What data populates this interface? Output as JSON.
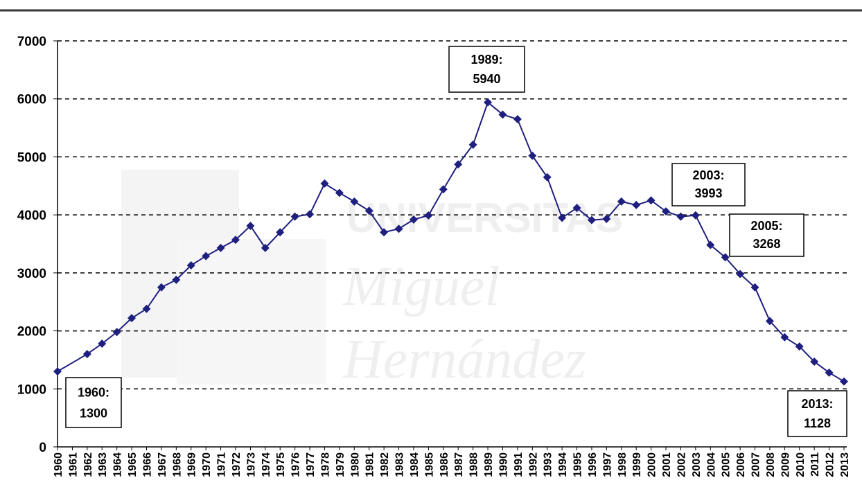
{
  "chart_data": {
    "type": "line",
    "watermark": [
      "UNIVERSITAS",
      "Miguel",
      "Hernández"
    ],
    "x": [
      1960,
      1962,
      1963,
      1964,
      1965,
      1966,
      1967,
      1968,
      1969,
      1970,
      1971,
      1972,
      1973,
      1974,
      1975,
      1976,
      1977,
      1978,
      1979,
      1980,
      1981,
      1982,
      1983,
      1984,
      1985,
      1986,
      1987,
      1988,
      1989,
      1990,
      1991,
      1992,
      1993,
      1994,
      1995,
      1996,
      1997,
      1998,
      1999,
      2000,
      2001,
      2002,
      2003,
      2004,
      2005,
      2006,
      2007,
      2008,
      2009,
      2010,
      2011,
      2012,
      2013
    ],
    "values": [
      1300,
      1600,
      1780,
      1980,
      2220,
      2380,
      2750,
      2880,
      3130,
      3290,
      3430,
      3570,
      3810,
      3430,
      3700,
      3970,
      4010,
      4540,
      4380,
      4230,
      4070,
      3700,
      3760,
      3920,
      3990,
      4440,
      4870,
      5210,
      5940,
      5730,
      5650,
      5020,
      4650,
      3950,
      4120,
      3910,
      3930,
      4230,
      4170,
      4250,
      4060,
      3970,
      3993,
      3480,
      3268,
      2980,
      2750,
      2170,
      1890,
      1730,
      1470,
      1280,
      1128
    ],
    "color": "#1f1f80",
    "xlim": [
      1960,
      2013
    ],
    "xticks": [
      1960,
      1961,
      1962,
      1963,
      1964,
      1965,
      1966,
      1967,
      1968,
      1969,
      1970,
      1971,
      1972,
      1973,
      1974,
      1975,
      1976,
      1977,
      1978,
      1979,
      1980,
      1981,
      1982,
      1983,
      1984,
      1985,
      1986,
      1987,
      1988,
      1989,
      1990,
      1991,
      1992,
      1993,
      1994,
      1995,
      1996,
      1997,
      1998,
      1999,
      2000,
      2001,
      2002,
      2003,
      2004,
      2005,
      2006,
      2007,
      2008,
      2009,
      2010,
      2011,
      2012,
      2013
    ],
    "ylim": [
      0,
      7000
    ],
    "yticks": [
      0,
      1000,
      2000,
      3000,
      4000,
      5000,
      6000,
      7000
    ],
    "grid": true,
    "annotations": [
      [
        "1960:",
        "1300"
      ],
      [
        "1989:",
        "5940"
      ],
      [
        "2003:",
        "3993"
      ],
      [
        "2005:",
        "3268"
      ],
      [
        "2013:",
        "1128"
      ]
    ]
  }
}
